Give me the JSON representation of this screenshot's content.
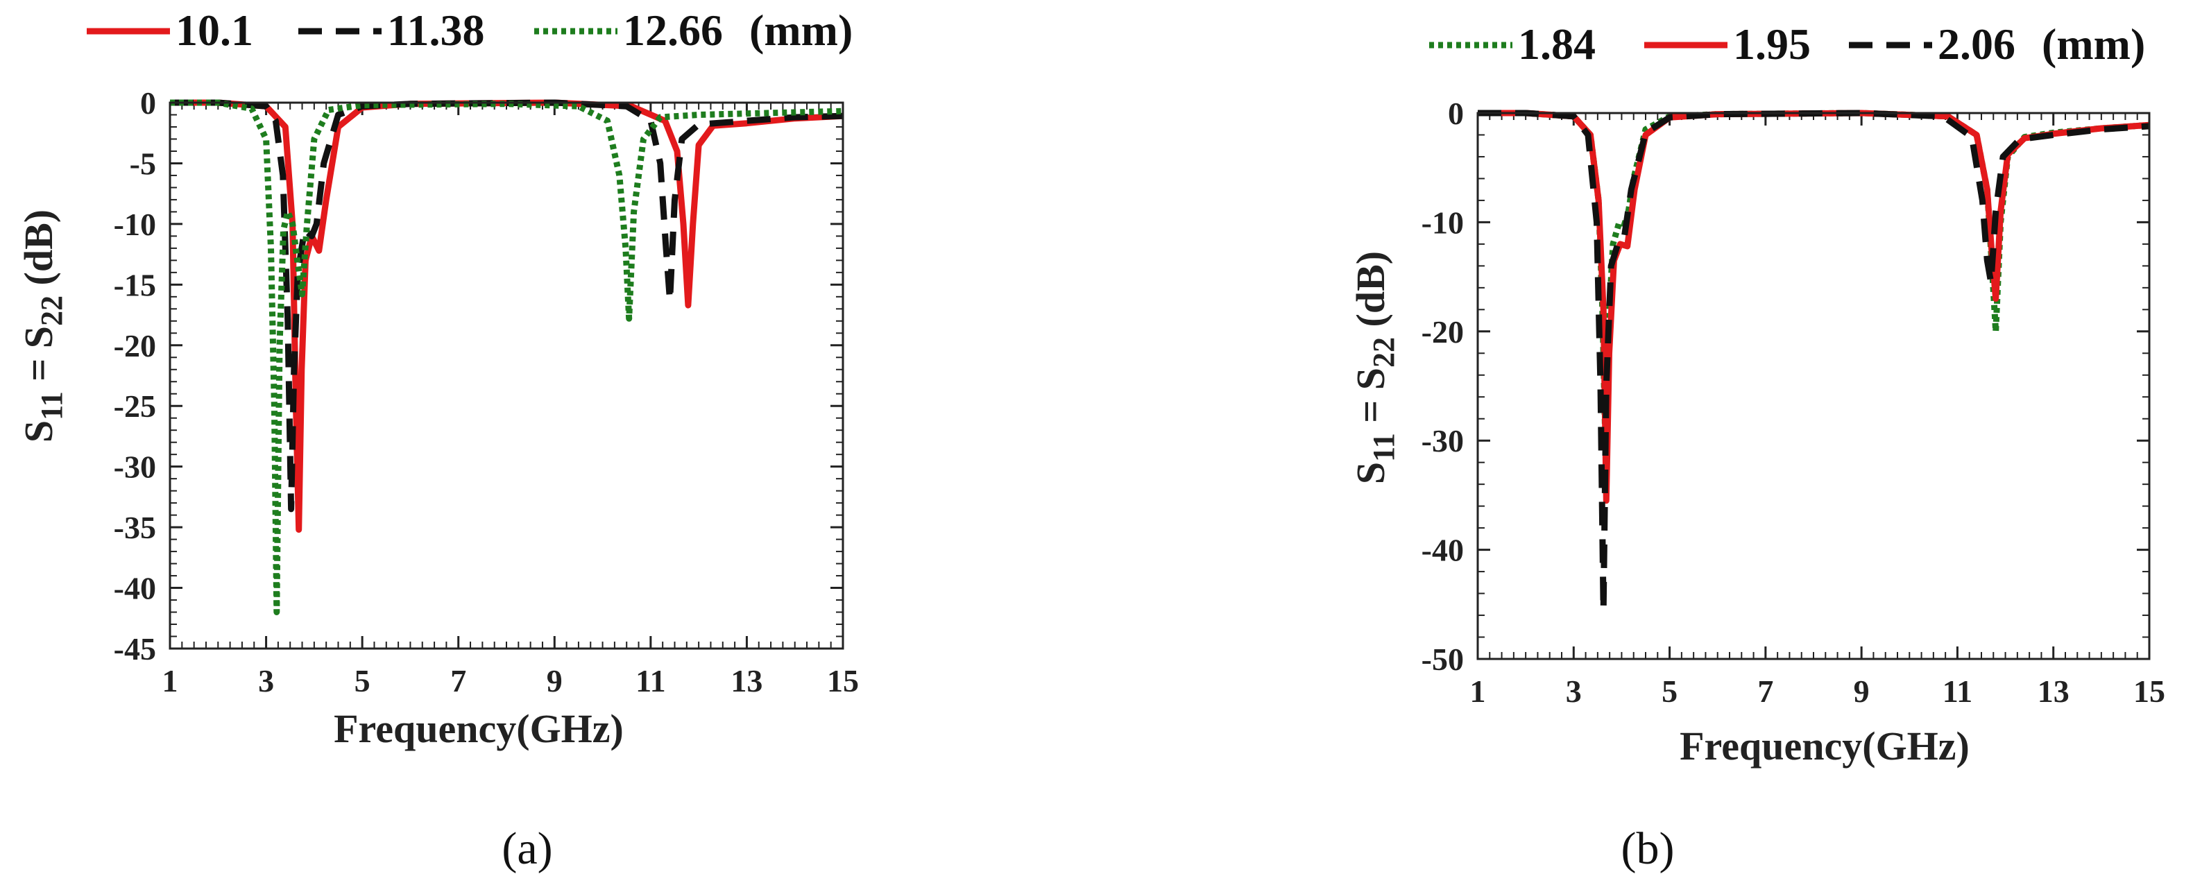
{
  "chart_data": [
    {
      "type": "line",
      "panel_label": "(a)",
      "xlabel": "Frequency(GHz)",
      "ylabel_main": "S",
      "ylabel_sub1": "11",
      "ylabel_eq": " = S",
      "ylabel_sub2": "22",
      "ylabel_unit": " (dB)",
      "xlim": [
        1,
        15
      ],
      "ylim": [
        -45,
        0
      ],
      "xticks": [
        1,
        3,
        5,
        7,
        9,
        11,
        13,
        15
      ],
      "yticks": [
        0,
        -5,
        -10,
        -15,
        -20,
        -25,
        -30,
        -35,
        -40,
        -45
      ],
      "legend_unit": "(mm)",
      "legend_position": "top",
      "series": [
        {
          "name": "10.1",
          "color": "#e31a1c",
          "style": "solid",
          "points": [
            [
              1,
              0
            ],
            [
              2,
              0
            ],
            [
              3,
              -0.3
            ],
            [
              3.4,
              -2
            ],
            [
              3.55,
              -10
            ],
            [
              3.62,
              -25
            ],
            [
              3.68,
              -35.2
            ],
            [
              3.74,
              -22
            ],
            [
              3.82,
              -13
            ],
            [
              3.95,
              -11
            ],
            [
              4.1,
              -12.2
            ],
            [
              4.25,
              -8
            ],
            [
              4.5,
              -2
            ],
            [
              5,
              -0.4
            ],
            [
              6,
              -0.1
            ],
            [
              9,
              0
            ],
            [
              10.6,
              -0.3
            ],
            [
              11.3,
              -1.5
            ],
            [
              11.55,
              -4
            ],
            [
              11.68,
              -10
            ],
            [
              11.78,
              -16.7
            ],
            [
              11.88,
              -10
            ],
            [
              12,
              -3.5
            ],
            [
              12.3,
              -1.9
            ],
            [
              13,
              -1.7
            ],
            [
              14,
              -1.3
            ],
            [
              15,
              -1.1
            ]
          ]
        },
        {
          "name": "11.38",
          "color": "#111111",
          "style": "dashed",
          "points": [
            [
              1,
              0
            ],
            [
              2,
              0
            ],
            [
              3,
              -0.3
            ],
            [
              3.2,
              -1.5
            ],
            [
              3.35,
              -6
            ],
            [
              3.45,
              -18
            ],
            [
              3.52,
              -33.5
            ],
            [
              3.58,
              -22
            ],
            [
              3.66,
              -14
            ],
            [
              3.8,
              -10.5
            ],
            [
              3.95,
              -11
            ],
            [
              4.05,
              -10
            ],
            [
              4.2,
              -5
            ],
            [
              4.5,
              -1
            ],
            [
              5,
              -0.3
            ],
            [
              6,
              -0.1
            ],
            [
              9,
              0
            ],
            [
              10.5,
              -0.3
            ],
            [
              11,
              -1.5
            ],
            [
              11.2,
              -5
            ],
            [
              11.32,
              -12
            ],
            [
              11.4,
              -16.3
            ],
            [
              11.5,
              -8
            ],
            [
              11.65,
              -3
            ],
            [
              12,
              -1.8
            ],
            [
              13,
              -1.5
            ],
            [
              14,
              -1.2
            ],
            [
              15,
              -1.1
            ]
          ]
        },
        {
          "name": "12.66",
          "color": "#1e7d1e",
          "style": "dotted",
          "points": [
            [
              1,
              0
            ],
            [
              2,
              0
            ],
            [
              2.7,
              -0.5
            ],
            [
              3,
              -3
            ],
            [
              3.1,
              -12
            ],
            [
              3.17,
              -25
            ],
            [
              3.22,
              -42
            ],
            [
              3.28,
              -20
            ],
            [
              3.36,
              -10.5
            ],
            [
              3.45,
              -9
            ],
            [
              3.55,
              -10
            ],
            [
              3.65,
              -13
            ],
            [
              3.75,
              -15.8
            ],
            [
              3.85,
              -10
            ],
            [
              4,
              -3
            ],
            [
              4.3,
              -0.6
            ],
            [
              5,
              -0.2
            ],
            [
              8,
              -0.1
            ],
            [
              9.5,
              -0.3
            ],
            [
              10.1,
              -1.5
            ],
            [
              10.35,
              -6
            ],
            [
              10.48,
              -12
            ],
            [
              10.55,
              -17.8
            ],
            [
              10.65,
              -9
            ],
            [
              10.85,
              -3
            ],
            [
              11.2,
              -1.2
            ],
            [
              12,
              -1
            ],
            [
              13,
              -0.9
            ],
            [
              15,
              -0.7
            ]
          ]
        }
      ]
    },
    {
      "type": "line",
      "panel_label": "(b)",
      "xlabel": "Frequency(GHz)",
      "ylabel_main": "S",
      "ylabel_sub1": "11",
      "ylabel_eq": " = S",
      "ylabel_sub2": "22",
      "ylabel_unit": " (dB)",
      "xlim": [
        1,
        15
      ],
      "ylim": [
        -50,
        0
      ],
      "xticks": [
        1,
        3,
        5,
        7,
        9,
        11,
        13,
        15
      ],
      "yticks": [
        0,
        -10,
        -20,
        -30,
        -40,
        -50
      ],
      "legend_unit": "(mm)",
      "legend_position": "top",
      "series": [
        {
          "name": "1.84",
          "color": "#1e7d1e",
          "style": "dotted",
          "points": [
            [
              1,
              0
            ],
            [
              2,
              0
            ],
            [
              3,
              -0.3
            ],
            [
              3.35,
              -2
            ],
            [
              3.52,
              -8
            ],
            [
              3.6,
              -18
            ],
            [
              3.66,
              -30
            ],
            [
              3.72,
              -20
            ],
            [
              3.82,
              -12
            ],
            [
              3.95,
              -10
            ],
            [
              4.1,
              -10.2
            ],
            [
              4.25,
              -6
            ],
            [
              4.5,
              -1.5
            ],
            [
              5,
              -0.3
            ],
            [
              6,
              -0.1
            ],
            [
              9,
              0
            ],
            [
              10.8,
              -0.3
            ],
            [
              11.4,
              -2
            ],
            [
              11.62,
              -7
            ],
            [
              11.72,
              -14
            ],
            [
              11.8,
              -20
            ],
            [
              11.9,
              -10
            ],
            [
              12.05,
              -4
            ],
            [
              12.4,
              -2.2
            ],
            [
              13,
              -1.8
            ],
            [
              14,
              -1.4
            ],
            [
              15,
              -1.1
            ]
          ]
        },
        {
          "name": "1.95",
          "color": "#e31a1c",
          "style": "solid",
          "points": [
            [
              1,
              0
            ],
            [
              2,
              0
            ],
            [
              3,
              -0.3
            ],
            [
              3.35,
              -2
            ],
            [
              3.52,
              -8
            ],
            [
              3.62,
              -18
            ],
            [
              3.68,
              -35.5
            ],
            [
              3.74,
              -22
            ],
            [
              3.84,
              -13.5
            ],
            [
              3.97,
              -12
            ],
            [
              4.12,
              -12.2
            ],
            [
              4.27,
              -7
            ],
            [
              4.5,
              -2
            ],
            [
              5,
              -0.4
            ],
            [
              6,
              -0.1
            ],
            [
              9,
              0
            ],
            [
              10.8,
              -0.3
            ],
            [
              11.4,
              -2
            ],
            [
              11.62,
              -7
            ],
            [
              11.72,
              -13
            ],
            [
              11.8,
              -17
            ],
            [
              11.9,
              -9
            ],
            [
              12.05,
              -3.8
            ],
            [
              12.4,
              -2.3
            ],
            [
              13,
              -1.9
            ],
            [
              14,
              -1.4
            ],
            [
              15,
              -1.1
            ]
          ]
        },
        {
          "name": "2.06",
          "color": "#111111",
          "style": "dashed",
          "points": [
            [
              1,
              0
            ],
            [
              2,
              0
            ],
            [
              3,
              -0.3
            ],
            [
              3.3,
              -2
            ],
            [
              3.48,
              -10
            ],
            [
              3.56,
              -25
            ],
            [
              3.62,
              -45.5
            ],
            [
              3.68,
              -25
            ],
            [
              3.78,
              -14
            ],
            [
              3.92,
              -12
            ],
            [
              4.05,
              -11.5
            ],
            [
              4.2,
              -7
            ],
            [
              4.5,
              -1.8
            ],
            [
              5,
              -0.4
            ],
            [
              6,
              -0.1
            ],
            [
              9,
              0
            ],
            [
              10.7,
              -0.3
            ],
            [
              11.3,
              -2.2
            ],
            [
              11.52,
              -8
            ],
            [
              11.62,
              -13.5
            ],
            [
              11.7,
              -15.5
            ],
            [
              11.8,
              -9
            ],
            [
              11.95,
              -4
            ],
            [
              12.3,
              -2.4
            ],
            [
              13,
              -2
            ],
            [
              14,
              -1.5
            ],
            [
              15,
              -1.2
            ]
          ]
        }
      ]
    }
  ]
}
